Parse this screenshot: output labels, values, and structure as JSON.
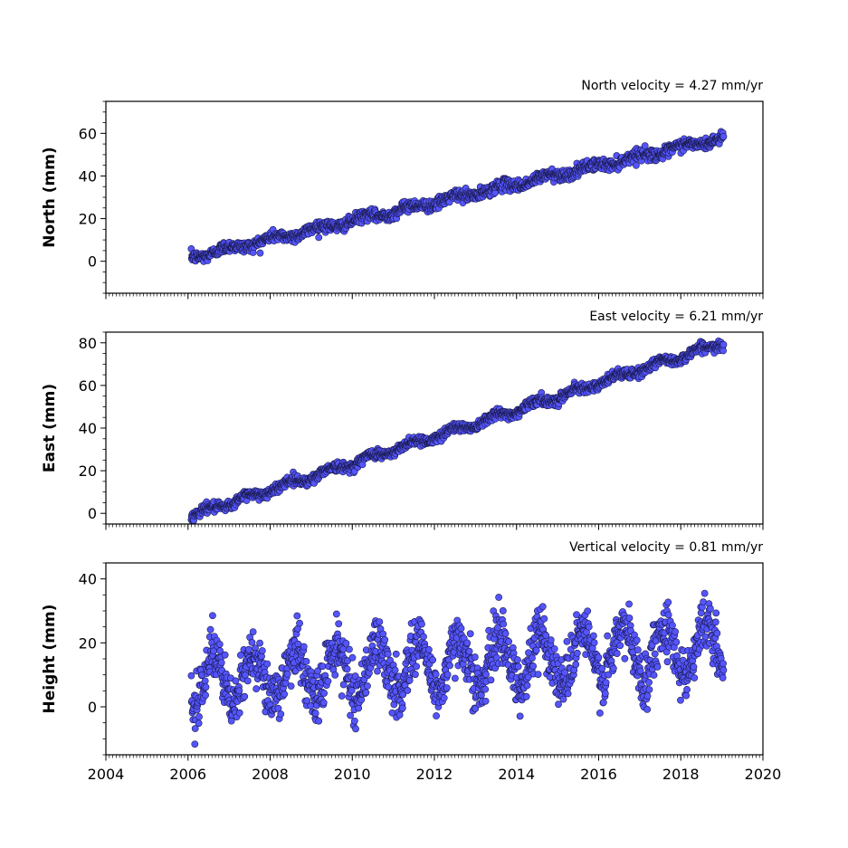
{
  "chart_data": [
    {
      "type": "scatter",
      "title": "North velocity = 4.27 mm/yr",
      "xlabel": "",
      "ylabel": "North (mm)",
      "xlim": [
        2004,
        2020
      ],
      "ylim": [
        -15,
        75
      ],
      "y_ticks": [
        0,
        20,
        40,
        60
      ],
      "x_tick_labels_shown": false,
      "grid": false,
      "marker_color": "#5555ff",
      "marker_edge_color": "#1a1a4d",
      "x_start": 2006.08,
      "x_end": 2019.04,
      "trend": {
        "velocity_mm_per_yr": 4.27,
        "y_at_start": 2.0,
        "y_at_end": 58.0
      },
      "sampled_points": [
        {
          "x": 2006.1,
          "y": 2
        },
        {
          "x": 2007.0,
          "y": 5
        },
        {
          "x": 2008.0,
          "y": 9
        },
        {
          "x": 2009.0,
          "y": 14
        },
        {
          "x": 2010.0,
          "y": 18
        },
        {
          "x": 2011.0,
          "y": 22
        },
        {
          "x": 2012.0,
          "y": 27
        },
        {
          "x": 2013.0,
          "y": 31
        },
        {
          "x": 2014.0,
          "y": 35
        },
        {
          "x": 2015.0,
          "y": 39
        },
        {
          "x": 2016.0,
          "y": 43
        },
        {
          "x": 2017.0,
          "y": 48
        },
        {
          "x": 2018.0,
          "y": 52
        },
        {
          "x": 2019.0,
          "y": 57
        }
      ]
    },
    {
      "type": "scatter",
      "title": "East velocity = 6.21 mm/yr",
      "xlabel": "",
      "ylabel": "East (mm)",
      "xlim": [
        2004,
        2020
      ],
      "ylim": [
        -5,
        85
      ],
      "y_ticks": [
        0,
        20,
        40,
        60,
        80
      ],
      "x_tick_labels_shown": false,
      "grid": false,
      "marker_color": "#5555ff",
      "marker_edge_color": "#1a1a4d",
      "x_start": 2006.08,
      "x_end": 2019.04,
      "trend": {
        "velocity_mm_per_yr": 6.21,
        "y_at_start": -1.0,
        "y_at_end": 80.0
      },
      "sampled_points": [
        {
          "x": 2006.1,
          "y": -1
        },
        {
          "x": 2007.0,
          "y": 5
        },
        {
          "x": 2008.0,
          "y": 11
        },
        {
          "x": 2009.0,
          "y": 17
        },
        {
          "x": 2010.0,
          "y": 24
        },
        {
          "x": 2011.0,
          "y": 29
        },
        {
          "x": 2012.0,
          "y": 35
        },
        {
          "x": 2013.0,
          "y": 41
        },
        {
          "x": 2014.0,
          "y": 47
        },
        {
          "x": 2015.0,
          "y": 54
        },
        {
          "x": 2016.0,
          "y": 60
        },
        {
          "x": 2017.0,
          "y": 66
        },
        {
          "x": 2018.0,
          "y": 73
        },
        {
          "x": 2019.0,
          "y": 80
        }
      ]
    },
    {
      "type": "scatter",
      "title": "Vertical velocity = 0.81 mm/yr",
      "xlabel": "",
      "ylabel": "Height (mm)",
      "xlim": [
        2004,
        2020
      ],
      "ylim": [
        -15,
        45
      ],
      "y_ticks": [
        0,
        20,
        40
      ],
      "x_ticks": [
        2004,
        2006,
        2008,
        2010,
        2012,
        2014,
        2016,
        2018,
        2020
      ],
      "x_tick_labels_shown": true,
      "grid": false,
      "marker_color": "#5555ff",
      "marker_edge_color": "#1a1a4d",
      "x_start": 2006.08,
      "x_end": 2019.04,
      "trend": {
        "velocity_mm_per_yr": 0.81,
        "y_at_start": 8.0,
        "y_at_end": 19.0
      },
      "seasonal_amplitude_mm": 8,
      "sampled_points": [
        {
          "x": 2006.1,
          "y": 8
        },
        {
          "x": 2006.6,
          "y": 22
        },
        {
          "x": 2007.1,
          "y": 3
        },
        {
          "x": 2007.6,
          "y": 20
        },
        {
          "x": 2008.1,
          "y": 2
        },
        {
          "x": 2008.6,
          "y": 21
        },
        {
          "x": 2009.1,
          "y": 1
        },
        {
          "x": 2009.6,
          "y": 22
        },
        {
          "x": 2010.1,
          "y": 5
        },
        {
          "x": 2010.6,
          "y": 20
        },
        {
          "x": 2011.1,
          "y": 3
        },
        {
          "x": 2011.6,
          "y": 20
        },
        {
          "x": 2012.1,
          "y": 5
        },
        {
          "x": 2012.6,
          "y": 21
        },
        {
          "x": 2013.1,
          "y": 2
        },
        {
          "x": 2013.6,
          "y": 23
        },
        {
          "x": 2014.1,
          "y": 6
        },
        {
          "x": 2014.6,
          "y": 25
        },
        {
          "x": 2015.1,
          "y": 8
        },
        {
          "x": 2015.6,
          "y": 28
        },
        {
          "x": 2016.1,
          "y": 10
        },
        {
          "x": 2016.6,
          "y": 28
        },
        {
          "x": 2017.1,
          "y": 5
        },
        {
          "x": 2017.6,
          "y": 28
        },
        {
          "x": 2018.1,
          "y": 12
        },
        {
          "x": 2018.6,
          "y": 30
        },
        {
          "x": 2019.0,
          "y": 25
        }
      ]
    }
  ]
}
